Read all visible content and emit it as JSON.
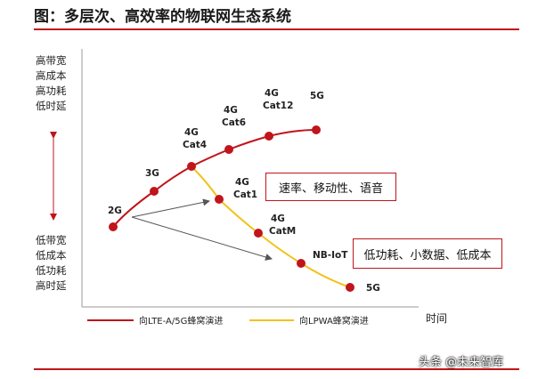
{
  "title": "图：多层次、高效率的物联网生态系统",
  "y_axis": {
    "top_label": [
      "高带宽",
      "高成本",
      "高功耗",
      "低时延"
    ],
    "bottom_label": [
      "低带宽",
      "低成本",
      "低功耗",
      "高时延"
    ]
  },
  "x_axis": {
    "label": "时间"
  },
  "boxes": {
    "lte_features": "速率、移动性、语音",
    "lpwa_features": "低功耗、小数据、低成本"
  },
  "lte_path": {
    "legend": "向LTE-A/5G蜂窝演进",
    "color": "#c0151b",
    "nodes": [
      {
        "label_line1": "2G",
        "label_line2": ""
      },
      {
        "label_line1": "3G",
        "label_line2": ""
      },
      {
        "label_line1": "4G",
        "label_line2": "Cat4"
      },
      {
        "label_line1": "4G",
        "label_line2": "Cat6"
      },
      {
        "label_line1": "4G",
        "label_line2": "Cat12"
      },
      {
        "label_line1": "5G",
        "label_line2": ""
      }
    ]
  },
  "lpwa_path": {
    "legend": "向LPWA蜂窝演进",
    "color": "#f2c21a",
    "nodes": [
      {
        "label_line1": "4G",
        "label_line2": "Cat1"
      },
      {
        "label_line1": "4G",
        "label_line2": "CatM"
      },
      {
        "label_line1": "NB-IoT",
        "label_line2": ""
      },
      {
        "label_line1": "5G",
        "label_line2": ""
      }
    ]
  },
  "watermark": "头条 @未来智库"
}
